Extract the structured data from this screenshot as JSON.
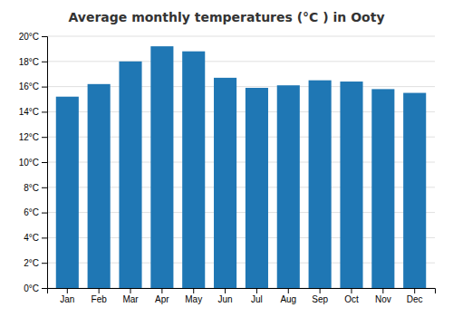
{
  "chart_data": {
    "type": "bar",
    "title": "Average monthly temperatures (°C ) in Ooty",
    "categories": [
      "Jan",
      "Feb",
      "Mar",
      "Apr",
      "May",
      "Jun",
      "Jul",
      "Aug",
      "Sep",
      "Oct",
      "Nov",
      "Dec"
    ],
    "values": [
      15.2,
      16.2,
      18.0,
      19.2,
      18.8,
      16.7,
      15.9,
      16.1,
      16.5,
      16.4,
      15.8,
      15.5
    ],
    "ylim": [
      0,
      20
    ],
    "yticks": [
      {
        "value": 0,
        "label": "0°C"
      },
      {
        "value": 2,
        "label": "2°C"
      },
      {
        "value": 4,
        "label": "4°C"
      },
      {
        "value": 6,
        "label": "6°C"
      },
      {
        "value": 8,
        "label": "8°C"
      },
      {
        "value": 10,
        "label": "10°C"
      },
      {
        "value": 12,
        "label": "12°C"
      },
      {
        "value": 14,
        "label": "14°C"
      },
      {
        "value": 16,
        "label": "16°C"
      },
      {
        "value": 18,
        "label": "18°C"
      },
      {
        "value": 20,
        "label": "20°C"
      }
    ],
    "grid": true
  }
}
